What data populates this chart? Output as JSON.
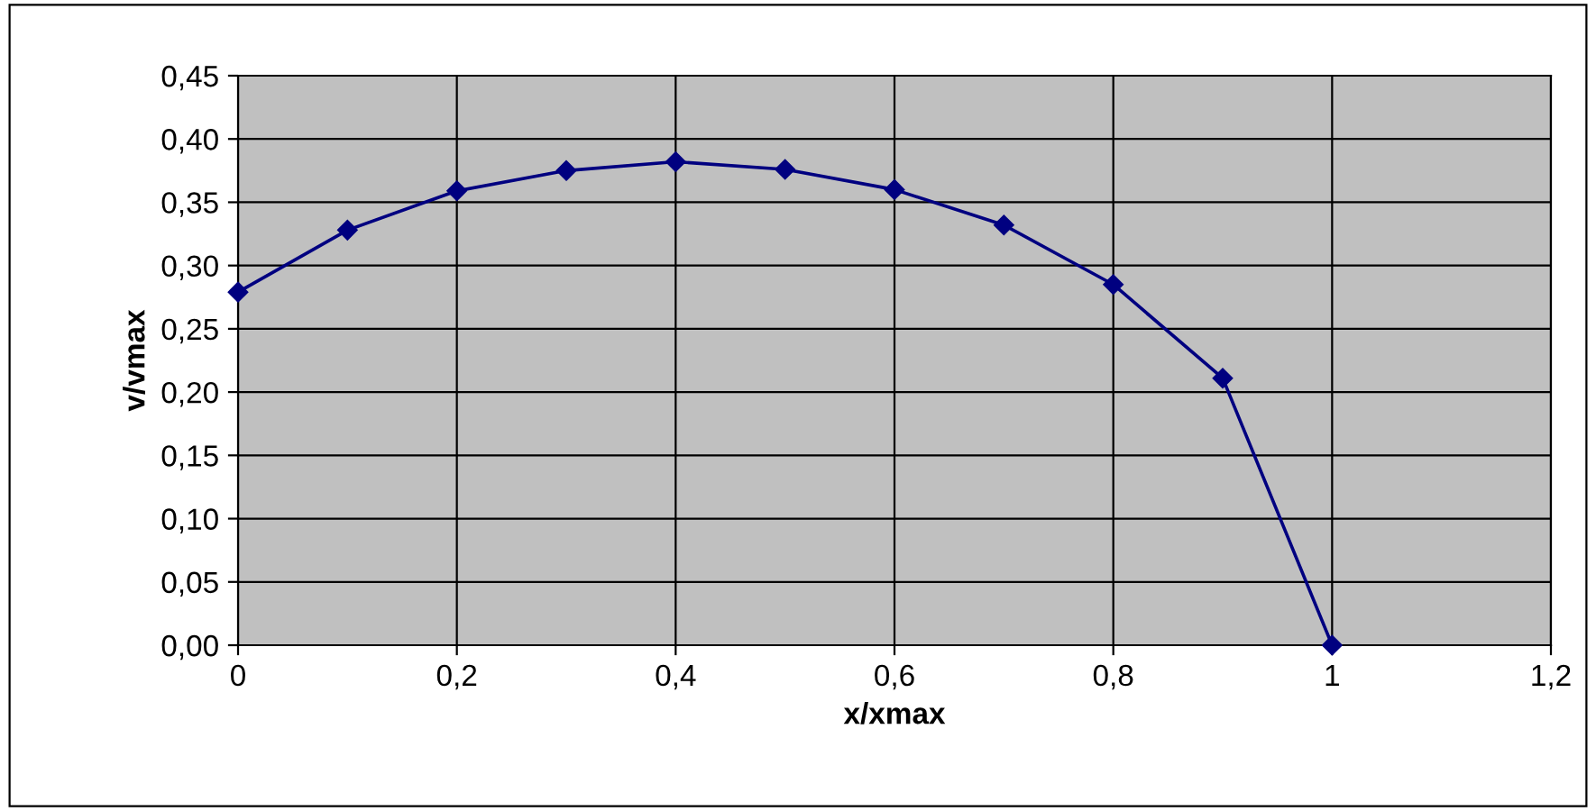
{
  "chart_data": {
    "type": "line",
    "xlabel": "x/xmax",
    "ylabel": "v/vmax",
    "x": [
      0,
      0.1,
      0.2,
      0.3,
      0.4,
      0.5,
      0.6,
      0.7,
      0.8,
      0.9,
      1
    ],
    "series": [
      {
        "color": "#000080",
        "values": [
          0.279,
          0.328,
          0.359,
          0.375,
          0.382,
          0.376,
          0.36,
          0.332,
          0.285,
          0.211,
          0.0
        ]
      }
    ],
    "xlim": [
      0,
      1.2
    ],
    "xticks": [
      0,
      {
        "value": 0.2,
        "label": "0,2"
      },
      {
        "value": 0.4,
        "label": "0,4"
      },
      {
        "value": 0.6,
        "label": "0,6"
      },
      {
        "value": 0.8,
        "label": "0,8"
      },
      1,
      {
        "value": 1.2,
        "label": "1,2"
      }
    ],
    "ylim": [
      0,
      0.45
    ],
    "yticks": [
      {
        "value": 0,
        "label": "0,00"
      },
      {
        "value": 0.05,
        "label": "0,05"
      },
      {
        "value": 0.1,
        "label": "0,10"
      },
      {
        "value": 0.15,
        "label": "0,15"
      },
      {
        "value": 0.2,
        "label": "0,20"
      },
      {
        "value": 0.25,
        "label": "0,25"
      },
      {
        "value": 0.3,
        "label": "0,30"
      },
      {
        "value": 0.35,
        "label": "0,35"
      },
      {
        "value": 0.4,
        "label": "0,40"
      },
      {
        "value": 0.45,
        "label": "0,45"
      }
    ],
    "grid": true,
    "marker": "diamond",
    "line_style": "solid"
  }
}
